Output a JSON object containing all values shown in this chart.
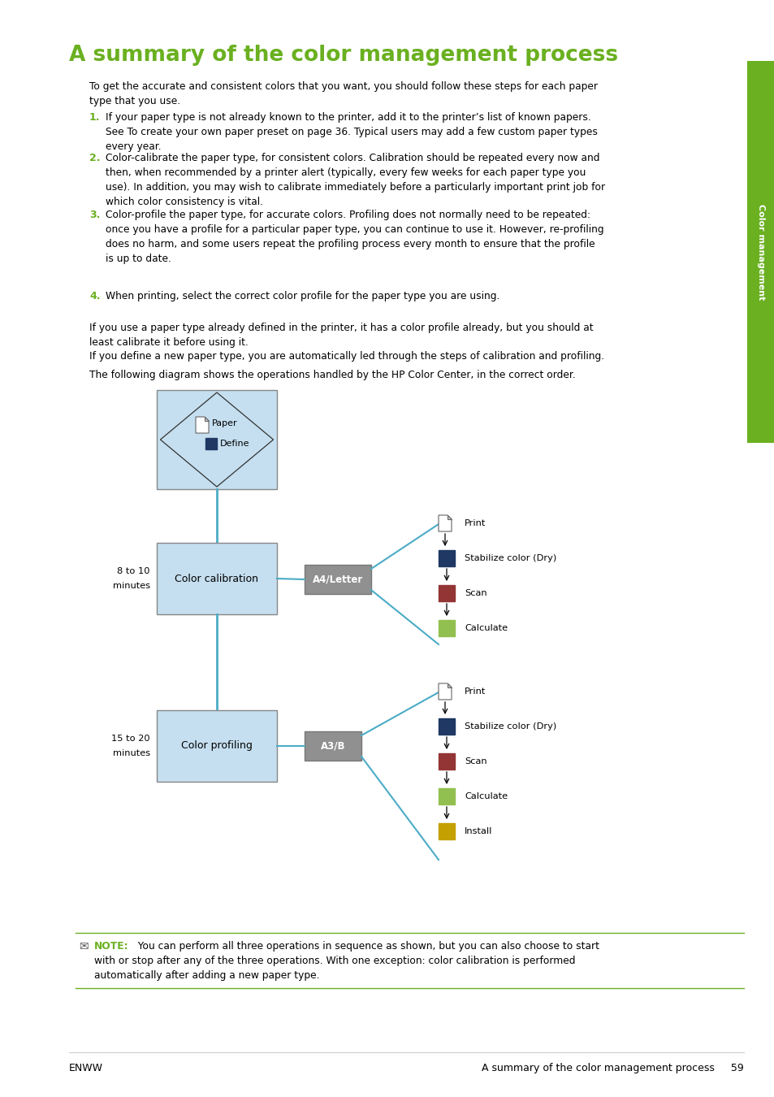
{
  "title": "A summary of the color management process",
  "title_color": "#6ab020",
  "sidebar_text": "Color management",
  "sidebar_color": "#6ab020",
  "page_bg": "#ffffff",
  "body_text_1": "To get the accurate and consistent colors that you want, you should follow these steps for each paper\ntype that you use.",
  "items": [
    {
      "num": "1.",
      "color": "#6ab020",
      "text": "If your paper type is not already known to the printer, add it to the printer’s list of known papers.\nSee To create your own paper preset on page 36. Typical users may add a few custom paper types\nevery year."
    },
    {
      "num": "2.",
      "color": "#6ab020",
      "text": "Color-calibrate the paper type, for consistent colors. Calibration should be repeated every now and\nthen, when recommended by a printer alert (typically, every few weeks for each paper type you\nuse). In addition, you may wish to calibrate immediately before a particularly important print job for\nwhich color consistency is vital."
    },
    {
      "num": "3.",
      "color": "#6ab020",
      "text": "Color-profile the paper type, for accurate colors. Profiling does not normally need to be repeated:\nonce you have a profile for a particular paper type, you can continue to use it. However, re-profiling\ndoes no harm, and some users repeat the profiling process every month to ensure that the profile\nis up to date."
    },
    {
      "num": "4.",
      "color": "#6ab020",
      "text": "When printing, select the correct color profile for the paper type you are using."
    }
  ],
  "body_text_2": "If you use a paper type already defined in the printer, it has a color profile already, but you should at\nleast calibrate it before using it.",
  "body_text_3": "If you define a new paper type, you are automatically led through the steps of calibration and profiling.",
  "body_text_4": "The following diagram shows the operations handled by the HP Color Center, in the correct order.",
  "note_text": "NOTE:   You can perform all three operations in sequence as shown, but you can also choose to start\nwith or stop after any of the three operations. With one exception: color calibration is performed\nautomatically after adding a new paper type.",
  "footer_left": "ENWW",
  "footer_right": "A summary of the color management process     59",
  "link_color": "#0066cc",
  "box_light_blue": "#c5dff0",
  "box_blue_border": "#5b9bd5",
  "connector_blue": "#4bacc6",
  "dark_blue_sq": "#1f3864",
  "red_sq": "#943535",
  "green_sq": "#92c050",
  "yellow_sq": "#c4a000",
  "gray_btn": "#909090",
  "note_green": "#6ab020"
}
